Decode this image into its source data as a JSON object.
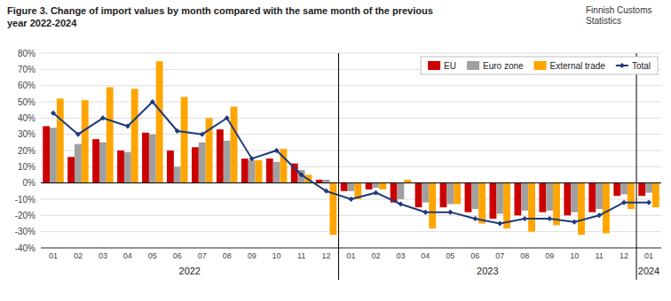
{
  "chart_data": {
    "type": "bar",
    "title": "Figure 3. Change of import values by month compared with the same month of the previous\nyear 2022-2024",
    "categories": [
      "01",
      "02",
      "03",
      "04",
      "05",
      "06",
      "07",
      "08",
      "09",
      "10",
      "11",
      "12",
      "01",
      "02",
      "03",
      "04",
      "05",
      "06",
      "07",
      "08",
      "09",
      "10",
      "11",
      "12",
      "01"
    ],
    "series": [
      {
        "name": "EU",
        "color": "#CC0000",
        "values": [
          35,
          16,
          27,
          20,
          31,
          20,
          22,
          33,
          15,
          15,
          12,
          2,
          -5,
          -4,
          -12,
          -15,
          -15,
          -18,
          -22,
          -20,
          -18,
          -20,
          -18,
          -8,
          -8
        ]
      },
      {
        "name": "Euro zone",
        "color": "#A0A0A0",
        "values": [
          34,
          24,
          25,
          19,
          30,
          10,
          25,
          26,
          14,
          13,
          8,
          2,
          -5,
          -3,
          -10,
          -12,
          -13,
          -16,
          -19,
          -17,
          -17,
          -18,
          -16,
          -7,
          -6
        ]
      },
      {
        "name": "External trade",
        "color": "#FFA500",
        "values": [
          52,
          51,
          59,
          58,
          75,
          53,
          40,
          47,
          14,
          21,
          5,
          -32,
          -10,
          -4,
          2,
          -28,
          -13,
          -25,
          -28,
          -30,
          -26,
          -32,
          -31,
          -16,
          -15
        ]
      },
      {
        "name": "Total",
        "type": "line",
        "color": "#1F3A7A",
        "marker": "diamond",
        "values": [
          43,
          30,
          40,
          35,
          50,
          32,
          30,
          40,
          15,
          20,
          5,
          -5,
          -10,
          -6,
          -13,
          -18,
          -18,
          -22,
          -25,
          -22,
          -22,
          -24,
          -20,
          -12,
          -12
        ]
      }
    ],
    "ylim": [
      -40,
      80
    ],
    "yticks": [
      {
        "value": -40,
        "label": "-40%"
      },
      {
        "value": -30,
        "label": "-30%"
      },
      {
        "value": -20,
        "label": "-20%"
      },
      {
        "value": -10,
        "label": "-10%"
      },
      {
        "value": 0,
        "label": "0%"
      },
      {
        "value": 10,
        "label": "10%"
      },
      {
        "value": 20,
        "label": "20%"
      },
      {
        "value": 30,
        "label": "30%"
      },
      {
        "value": 40,
        "label": "40%"
      },
      {
        "value": 50,
        "label": "50%"
      },
      {
        "value": 60,
        "label": "60%"
      },
      {
        "value": 70,
        "label": "70%"
      },
      {
        "value": 80,
        "label": "80%"
      }
    ],
    "grid": true,
    "legend": "upper right",
    "annotations": [
      {
        "text": "Finnish Customs\nStatistics"
      },
      {
        "text": "2022"
      },
      {
        "text": "2023"
      },
      {
        "text": "2024"
      }
    ]
  }
}
